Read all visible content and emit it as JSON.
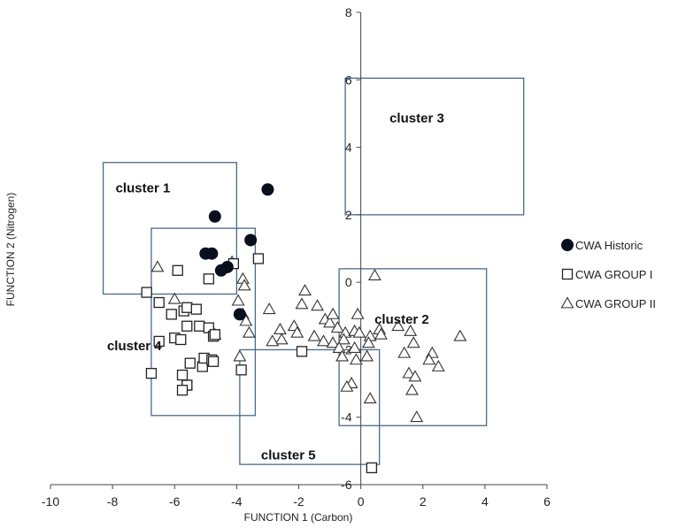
{
  "chart_data": {
    "type": "scatter",
    "xlabel": "FUNCTION 1 (Carbon)",
    "ylabel": "FUNCTION 2 (Nitrogen)",
    "xlim": [
      -10,
      6
    ],
    "ylim": [
      -6,
      8
    ],
    "xticks": [
      -10,
      -8,
      -6,
      -4,
      -2,
      0,
      2,
      4,
      6
    ],
    "yticks": [
      -6,
      -4,
      -2,
      0,
      2,
      4,
      6,
      8
    ],
    "xtick_labels": [
      "-10",
      "-8",
      "-6",
      "-4",
      "-2",
      "0",
      "2",
      "4",
      "6"
    ],
    "ytick_labels": [
      "-6",
      "-4",
      "-2",
      "0",
      "2",
      "4",
      "6",
      "8"
    ],
    "grid": false,
    "legend_position": "right",
    "series": [
      {
        "name": "CWA Historic",
        "marker": "filled-circle",
        "color": "#0a0f1e",
        "points": [
          [
            -3.0,
            2.75
          ],
          [
            -4.7,
            1.95
          ],
          [
            -3.55,
            1.25
          ],
          [
            -5.0,
            0.85
          ],
          [
            -4.8,
            0.85
          ],
          [
            -4.3,
            0.45
          ],
          [
            -4.5,
            0.35
          ],
          [
            -3.9,
            -0.95
          ]
        ]
      },
      {
        "name": "CWA GROUP I",
        "marker": "open-square",
        "color": "#222222",
        "points": [
          [
            -6.9,
            -0.3
          ],
          [
            -5.9,
            0.35
          ],
          [
            -4.9,
            0.1
          ],
          [
            -4.1,
            0.55
          ],
          [
            -3.3,
            0.7
          ],
          [
            -6.5,
            -0.6
          ],
          [
            -6.1,
            -0.95
          ],
          [
            -5.7,
            -0.85
          ],
          [
            -5.6,
            -0.75
          ],
          [
            -5.3,
            -0.8
          ],
          [
            -5.6,
            -1.3
          ],
          [
            -5.2,
            -1.3
          ],
          [
            -6.0,
            -1.65
          ],
          [
            -5.8,
            -1.7
          ],
          [
            -6.5,
            -1.75
          ],
          [
            -4.9,
            -1.35
          ],
          [
            -4.75,
            -1.6
          ],
          [
            -4.7,
            -1.55
          ],
          [
            -6.75,
            -2.7
          ],
          [
            -5.5,
            -2.4
          ],
          [
            -5.1,
            -2.5
          ],
          [
            -5.05,
            -2.25
          ],
          [
            -4.8,
            -2.3
          ],
          [
            -4.75,
            -2.35
          ],
          [
            -5.75,
            -2.75
          ],
          [
            -5.6,
            -3.05
          ],
          [
            -5.6,
            -3.05
          ],
          [
            -5.75,
            -3.2
          ],
          [
            -3.85,
            -2.6
          ],
          [
            -1.9,
            -2.05
          ],
          [
            0.35,
            -5.5
          ]
        ]
      },
      {
        "name": "CWA GROUP II",
        "marker": "open-triangle",
        "color": "#333333",
        "points": [
          [
            -6.55,
            0.45
          ],
          [
            -4.15,
            0.6
          ],
          [
            -3.8,
            0.1
          ],
          [
            -3.75,
            -0.1
          ],
          [
            -6.0,
            -0.5
          ],
          [
            -3.95,
            -0.55
          ],
          [
            -3.8,
            -0.95
          ],
          [
            -3.7,
            -1.15
          ],
          [
            -4.7,
            -1.55
          ],
          [
            -2.95,
            -0.8
          ],
          [
            -1.8,
            -0.25
          ],
          [
            -1.9,
            -0.65
          ],
          [
            -1.4,
            -0.7
          ],
          [
            -1.15,
            -1.1
          ],
          [
            -1.0,
            -1.2
          ],
          [
            -0.9,
            -0.95
          ],
          [
            -0.1,
            -0.95
          ],
          [
            -0.75,
            -1.35
          ],
          [
            -0.5,
            -1.5
          ],
          [
            -0.55,
            -1.7
          ],
          [
            -0.2,
            -1.45
          ],
          [
            -0.05,
            -1.5
          ],
          [
            0.3,
            -1.6
          ],
          [
            0.25,
            -1.8
          ],
          [
            0.6,
            -1.4
          ],
          [
            0.65,
            -1.55
          ],
          [
            1.2,
            -1.3
          ],
          [
            1.6,
            -1.45
          ],
          [
            1.7,
            -1.8
          ],
          [
            3.2,
            -1.6
          ],
          [
            -2.15,
            -1.3
          ],
          [
            -2.05,
            -1.5
          ],
          [
            -1.5,
            -1.6
          ],
          [
            -1.2,
            -1.75
          ],
          [
            -0.9,
            -1.8
          ],
          [
            -0.7,
            -1.95
          ],
          [
            -0.2,
            -1.95
          ],
          [
            0.2,
            -2.2
          ],
          [
            -0.6,
            -2.2
          ],
          [
            -0.15,
            -2.3
          ],
          [
            -2.6,
            -1.4
          ],
          [
            -2.55,
            -1.7
          ],
          [
            -2.85,
            -1.75
          ],
          [
            -3.6,
            -1.5
          ],
          [
            -3.9,
            -2.2
          ],
          [
            2.3,
            -2.1
          ],
          [
            2.2,
            -2.3
          ],
          [
            1.4,
            -2.1
          ],
          [
            2.5,
            -2.5
          ],
          [
            1.55,
            -2.7
          ],
          [
            1.75,
            -2.8
          ],
          [
            1.65,
            -3.2
          ],
          [
            -0.3,
            -3.0
          ],
          [
            -0.45,
            -3.1
          ],
          [
            0.3,
            -3.45
          ],
          [
            1.8,
            -4.0
          ],
          [
            0.45,
            0.2
          ]
        ]
      }
    ],
    "clusters": [
      {
        "label": "cluster 1",
        "x": [
          -8.3,
          -4.0
        ],
        "y": [
          -0.35,
          3.55
        ]
      },
      {
        "label": "cluster 2",
        "x": [
          -0.7,
          4.05
        ],
        "y": [
          -4.25,
          0.4
        ]
      },
      {
        "label": "cluster 3",
        "x": [
          -0.5,
          5.25
        ],
        "y": [
          2.0,
          6.05
        ]
      },
      {
        "label": "cluster 4",
        "x": [
          -6.75,
          -3.4
        ],
        "y": [
          -3.95,
          1.6
        ]
      },
      {
        "label": "cluster 5",
        "x": [
          -3.9,
          0.6
        ],
        "y": [
          -5.4,
          -2.0
        ]
      }
    ]
  }
}
